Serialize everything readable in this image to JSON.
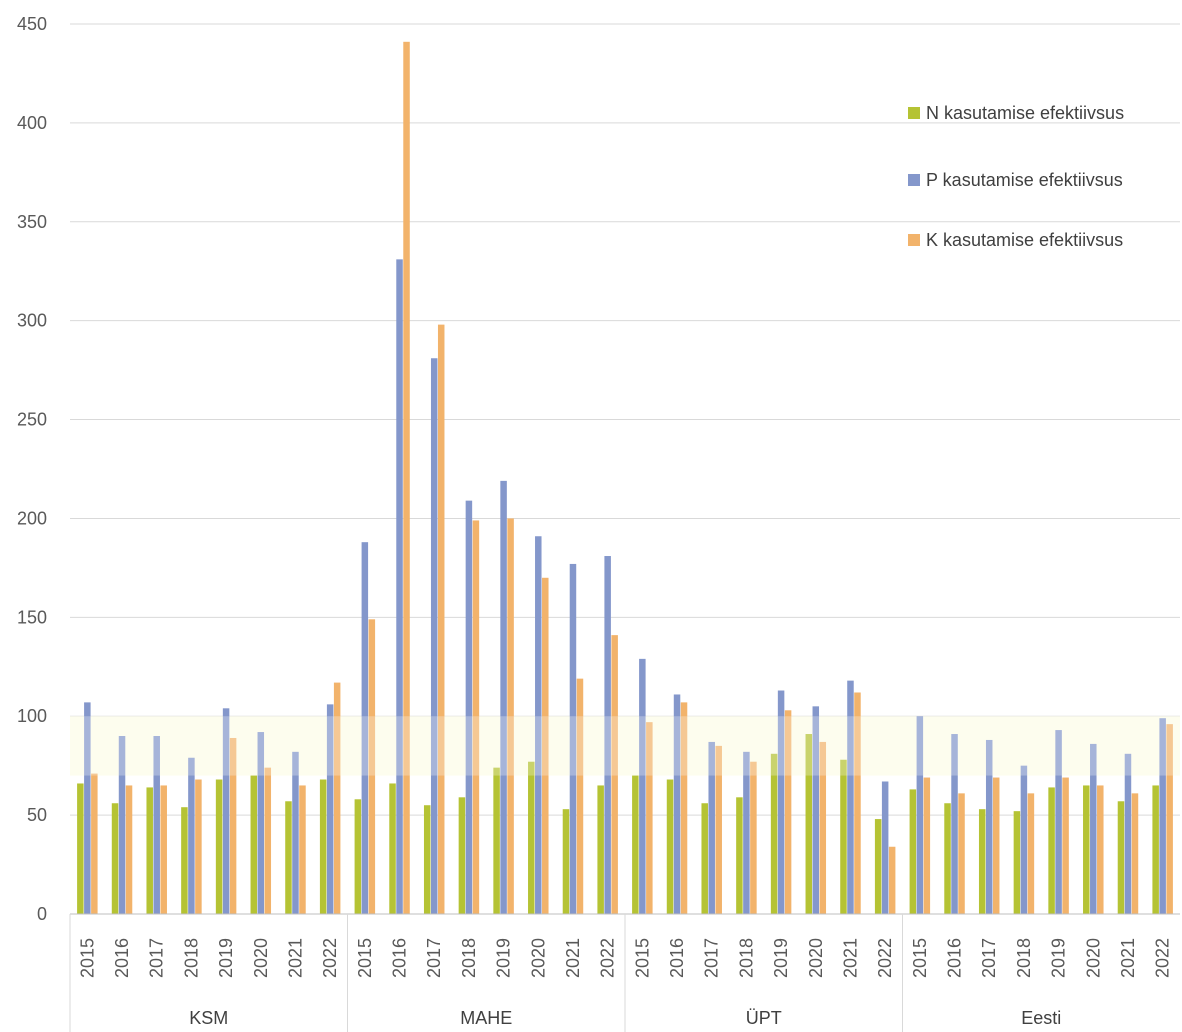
{
  "chart_data": {
    "type": "bar",
    "ylim": [
      0,
      450
    ],
    "yticks": [
      0,
      50,
      100,
      150,
      200,
      250,
      300,
      350,
      400,
      450
    ],
    "grid": true,
    "legend_position": "top-right",
    "highlight_band": [
      70,
      100
    ],
    "groups": [
      "KSM",
      "MAHE",
      "ÜPT",
      "Eesti"
    ],
    "years": [
      "2015",
      "2016",
      "2017",
      "2018",
      "2019",
      "2020",
      "2021",
      "2022"
    ],
    "series": [
      {
        "name": "N  kasutamise efektiivsus",
        "color": "#b5c334",
        "values": [
          [
            66,
            56,
            64,
            54,
            68,
            70,
            57,
            68
          ],
          [
            58,
            66,
            55,
            59,
            74,
            77,
            53,
            65
          ],
          [
            70,
            68,
            56,
            59,
            81,
            91,
            78,
            48
          ],
          [
            63,
            56,
            53,
            52,
            64,
            65,
            57,
            65
          ]
        ]
      },
      {
        "name": "P  kasutamise efektiivsus",
        "color": "#8497cb",
        "values": [
          [
            107,
            90,
            90,
            79,
            104,
            92,
            82,
            106
          ],
          [
            188,
            331,
            281,
            209,
            219,
            191,
            177,
            181
          ],
          [
            129,
            111,
            87,
            82,
            113,
            105,
            118,
            67
          ],
          [
            100,
            91,
            88,
            75,
            93,
            86,
            81,
            99
          ]
        ]
      },
      {
        "name": "K  kasutamise efektiivsus",
        "color": "#f2b36b",
        "values": [
          [
            71,
            65,
            65,
            68,
            89,
            74,
            65,
            117
          ],
          [
            149,
            441,
            298,
            199,
            200,
            170,
            119,
            141
          ],
          [
            97,
            107,
            85,
            77,
            103,
            87,
            112,
            34
          ],
          [
            69,
            61,
            69,
            61,
            69,
            65,
            61,
            96
          ]
        ]
      }
    ]
  }
}
